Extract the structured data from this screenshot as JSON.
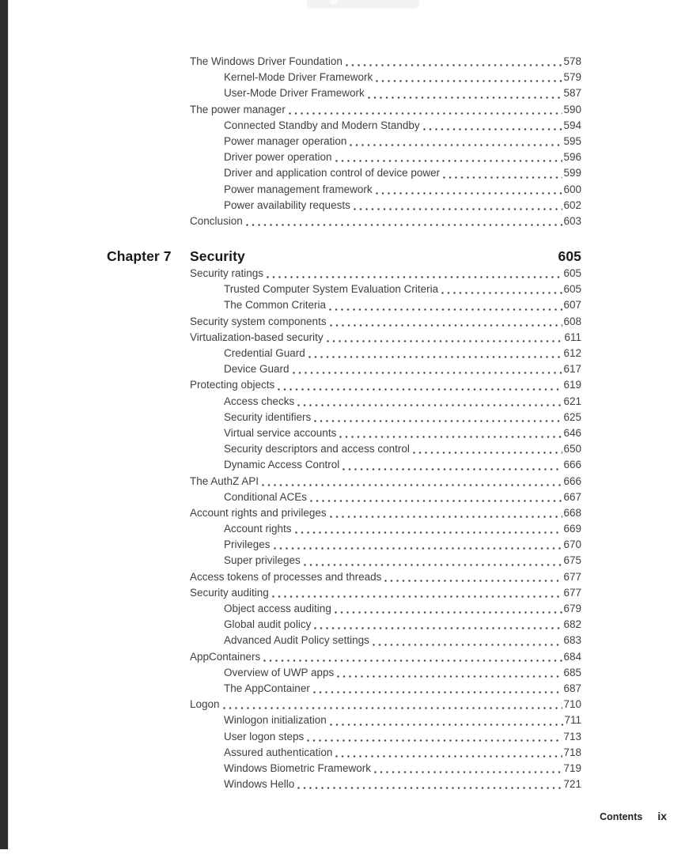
{
  "colors": {
    "page_background": "#ffffff",
    "body_text": "#3f3f42",
    "heading_text": "#19191b",
    "edge_strip": "#2e2e2e",
    "toolbar_pill": "#f2f2f3"
  },
  "document": {
    "footer": {
      "section_label": "Contents",
      "page_number": "ix"
    },
    "toc": {
      "pre_chapter_entries": [
        {
          "level": 1,
          "title": "The Windows Driver Foundation",
          "page": "578"
        },
        {
          "level": 2,
          "title": "Kernel-Mode Driver Framework",
          "page": "579"
        },
        {
          "level": 2,
          "title": "User-Mode Driver Framework",
          "page": "587"
        },
        {
          "level": 1,
          "title": "The power manager",
          "page": "590"
        },
        {
          "level": 2,
          "title": "Connected Standby and Modern Standby",
          "page": "594"
        },
        {
          "level": 2,
          "title": "Power manager operation",
          "page": "595"
        },
        {
          "level": 2,
          "title": "Driver power operation",
          "page": "596"
        },
        {
          "level": 2,
          "title": "Driver and application control of device power",
          "page": "599"
        },
        {
          "level": 2,
          "title": "Power management framework",
          "page": "600"
        },
        {
          "level": 2,
          "title": "Power availability requests",
          "page": "602"
        },
        {
          "level": 1,
          "title": "Conclusion",
          "page": "603"
        }
      ],
      "chapter_heading": {
        "label": "Chapter 7",
        "title": "Security",
        "page": "605"
      },
      "chapter_entries": [
        {
          "level": 1,
          "title": "Security ratings",
          "page": "605"
        },
        {
          "level": 2,
          "title": "Trusted Computer System Evaluation Criteria",
          "page": "605"
        },
        {
          "level": 2,
          "title": "The Common Criteria",
          "page": "607"
        },
        {
          "level": 1,
          "title": "Security system components",
          "page": "608"
        },
        {
          "level": 1,
          "title": "Virtualization-based security",
          "page": "611"
        },
        {
          "level": 2,
          "title": "Credential Guard",
          "page": "612"
        },
        {
          "level": 2,
          "title": "Device Guard",
          "page": "617"
        },
        {
          "level": 1,
          "title": "Protecting objects",
          "page": "619"
        },
        {
          "level": 2,
          "title": "Access checks",
          "page": "621"
        },
        {
          "level": 2,
          "title": "Security identifiers",
          "page": "625"
        },
        {
          "level": 2,
          "title": "Virtual service accounts",
          "page": "646"
        },
        {
          "level": 2,
          "title": "Security descriptors and access control",
          "page": "650"
        },
        {
          "level": 2,
          "title": "Dynamic Access Control",
          "page": "666"
        },
        {
          "level": 1,
          "title": "The AuthZ API",
          "page": "666"
        },
        {
          "level": 2,
          "title": "Conditional ACEs",
          "page": "667"
        },
        {
          "level": 1,
          "title": "Account rights and privileges",
          "page": "668"
        },
        {
          "level": 2,
          "title": "Account rights",
          "page": "669"
        },
        {
          "level": 2,
          "title": "Privileges",
          "page": "670"
        },
        {
          "level": 2,
          "title": "Super privileges",
          "page": "675"
        },
        {
          "level": 1,
          "title": "Access tokens of processes and threads",
          "page": "677"
        },
        {
          "level": 1,
          "title": "Security auditing",
          "page": "677"
        },
        {
          "level": 2,
          "title": "Object access auditing",
          "page": "679"
        },
        {
          "level": 2,
          "title": "Global audit policy",
          "page": "682"
        },
        {
          "level": 2,
          "title": "Advanced Audit Policy settings",
          "page": "683"
        },
        {
          "level": 1,
          "title": "AppContainers",
          "page": "684"
        },
        {
          "level": 2,
          "title": "Overview of UWP apps",
          "page": "685"
        },
        {
          "level": 2,
          "title": "The AppContainer",
          "page": "687"
        },
        {
          "level": 1,
          "title": "Logon",
          "page": "710"
        },
        {
          "level": 2,
          "title": "Winlogon initialization",
          "page": "711"
        },
        {
          "level": 2,
          "title": "User logon steps",
          "page": "713"
        },
        {
          "level": 2,
          "title": "Assured authentication",
          "page": "718"
        },
        {
          "level": 2,
          "title": "Windows Biometric Framework",
          "page": "719"
        },
        {
          "level": 2,
          "title": "Windows Hello",
          "page": "721"
        }
      ]
    }
  }
}
